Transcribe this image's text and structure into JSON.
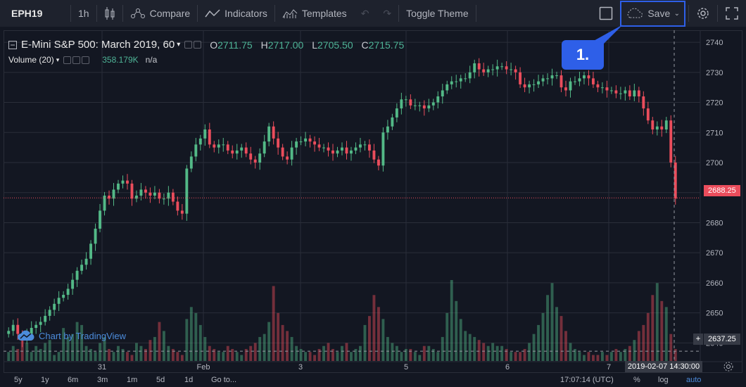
{
  "toolbar": {
    "symbol": "EPH19",
    "interval": "1h",
    "compare_label": "Compare",
    "indicators_label": "Indicators",
    "templates_label": "Templates",
    "toggle_theme_label": "Toggle Theme",
    "save_label": "Save"
  },
  "legend": {
    "title": "E-Mini S&P 500: March 2019, 60",
    "open_label": "O",
    "open": "2711.75",
    "high_label": "H",
    "high": "2717.00",
    "low_label": "L",
    "low": "2705.50",
    "close_label": "C",
    "close": "2715.75",
    "volume_title": "Volume (20)",
    "volume_value": "358.179K",
    "volume_na": "n/a"
  },
  "callout": "1.",
  "watermark": "Chart by TradingView",
  "price_tags": {
    "last": "2688.25",
    "crosshair": "2637.25"
  },
  "crosshair_time": "2019-02-07 14:30:00",
  "bottombar": {
    "ranges": [
      "5y",
      "1y",
      "6m",
      "3m",
      "1m",
      "5d",
      "1d"
    ],
    "goto": "Go to...",
    "clock": "17:07:14 (UTC)",
    "percent": "%",
    "log": "log",
    "auto": "auto"
  },
  "colors": {
    "up": "#53b987",
    "down": "#eb4d5c",
    "bg": "#131722",
    "accent": "#2e5fe8"
  },
  "chart_data": {
    "type": "candlestick",
    "ylim": [
      2634,
      2744
    ],
    "y_ticks": [
      2640,
      2650,
      2660,
      2670,
      2680,
      2690,
      2700,
      2710,
      2720,
      2730,
      2740
    ],
    "x_labels": [
      "31",
      "Feb",
      "3",
      "5",
      "6",
      "7"
    ],
    "closes": [
      2644,
      2646,
      2643,
      2641,
      2643,
      2645,
      2646,
      2647,
      2649,
      2651,
      2653,
      2655,
      2656,
      2658,
      2661,
      2664,
      2666,
      2668,
      2673,
      2678,
      2684,
      2689,
      2688,
      2691,
      2693,
      2694,
      2693,
      2688,
      2689,
      2691,
      2690,
      2689,
      2690,
      2688,
      2688,
      2690,
      2687,
      2684,
      2683,
      2698,
      2702,
      2706,
      2708,
      2711,
      2706,
      2705,
      2706,
      2706,
      2704,
      2703,
      2704,
      2705,
      2703,
      2701,
      2700,
      2703,
      2707,
      2712,
      2708,
      2705,
      2702,
      2701,
      2705,
      2707,
      2707,
      2708,
      2707,
      2706,
      2705,
      2705,
      2704,
      2703,
      2704,
      2705,
      2703,
      2704,
      2705,
      2706,
      2706,
      2704,
      2701,
      2699,
      2710,
      2712,
      2715,
      2718,
      2721,
      2721,
      2719,
      2719,
      2719,
      2718,
      2719,
      2720,
      2722,
      2724,
      2726,
      2727,
      2727,
      2728,
      2728,
      2730,
      2733,
      2731,
      2730,
      2731,
      2731,
      2732,
      2732,
      2731,
      2731,
      2730,
      2726,
      2725,
      2726,
      2726,
      2727,
      2728,
      2728,
      2729,
      2729,
      2725,
      2724,
      2727,
      2727,
      2728,
      2729,
      2728,
      2726,
      2725,
      2725,
      2724,
      2724,
      2723,
      2723,
      2724,
      2722,
      2724,
      2722,
      2718,
      2714,
      2711,
      2712,
      2711,
      2714,
      2700,
      2688
    ],
    "volumes": [
      3,
      5,
      4,
      8,
      6,
      3,
      5,
      4,
      6,
      7,
      2,
      3,
      11,
      8,
      9,
      13,
      12,
      5,
      4,
      3,
      6,
      8,
      4,
      3,
      5,
      4,
      3,
      2,
      6,
      5,
      4,
      7,
      8,
      13,
      10,
      5,
      4,
      3,
      2,
      14,
      18,
      16,
      12,
      8,
      5,
      4,
      3,
      3,
      5,
      4,
      3,
      2,
      4,
      5,
      6,
      8,
      9,
      13,
      25,
      16,
      12,
      10,
      8,
      5,
      4,
      3,
      3,
      2,
      4,
      5,
      6,
      4,
      3,
      5,
      6,
      3,
      4,
      5,
      12,
      15,
      22,
      18,
      14,
      8,
      6,
      5,
      3,
      4,
      4,
      3,
      2,
      5,
      5,
      4,
      3,
      8,
      16,
      27,
      20,
      14,
      10,
      9,
      8,
      7,
      6,
      5,
      6,
      5,
      5,
      4,
      3,
      3,
      3,
      4,
      6,
      9,
      12,
      16,
      22,
      26,
      18,
      15,
      10,
      6,
      4,
      3,
      2,
      3,
      2,
      2,
      3,
      2,
      3,
      4,
      3,
      4,
      5,
      7,
      10,
      12,
      16,
      22,
      26,
      20,
      18,
      9,
      4
    ]
  }
}
